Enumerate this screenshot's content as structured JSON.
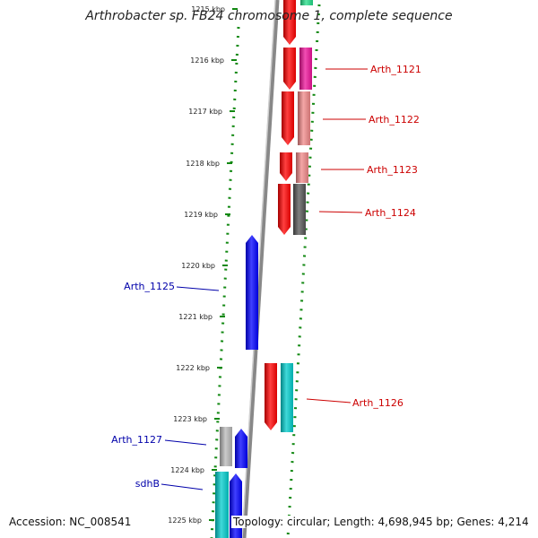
{
  "title": "Arthrobacter sp. FB24 chromosome 1, complete sequence",
  "footer": {
    "accession": "Accession: NC_008541",
    "summary": "Topology: circular; Length: 4,698,945 bp; Genes: 4,214"
  },
  "ticks": [
    "1215 kbp",
    "1216 kbp",
    "1217 kbp",
    "1218 kbp",
    "1219 kbp",
    "1220 kbp",
    "1221 kbp",
    "1222 kbp",
    "1223 kbp",
    "1224 kbp",
    "1225 kbp"
  ],
  "gene_labels": [
    {
      "text": "Arth_1121",
      "color": "#cc0000"
    },
    {
      "text": "Arth_1122",
      "color": "#cc0000"
    },
    {
      "text": "Arth_1123",
      "color": "#cc0000"
    },
    {
      "text": "Arth_1124",
      "color": "#cc0000"
    },
    {
      "text": "Arth_1125",
      "color": "#0000aa"
    },
    {
      "text": "Arth_1126",
      "color": "#cc0000"
    },
    {
      "text": "Arth_1127",
      "color": "#0000aa"
    },
    {
      "text": "sdhB",
      "color": "#0000aa"
    }
  ],
  "colors": {
    "forward_cds": "#ff0000",
    "reverse_cds": "#0000ff",
    "backbone": "#888888",
    "gc_dots": "#118811",
    "magenta": "#ee1199",
    "pink": "#f08888",
    "dark_gray": "#555555",
    "cyan": "#00cccc",
    "light_gray": "#b8b8b8"
  }
}
